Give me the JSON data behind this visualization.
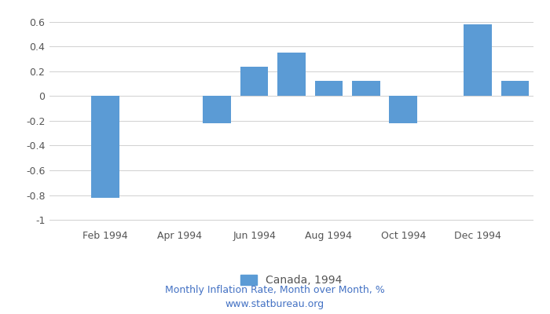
{
  "month_nums": [
    1,
    2,
    3,
    4,
    5,
    6,
    7,
    8,
    9,
    10,
    11,
    12,
    13
  ],
  "values": [
    0.0,
    -0.82,
    0.0,
    0.0,
    -0.22,
    0.24,
    0.35,
    0.12,
    0.12,
    -0.22,
    0.0,
    0.58,
    0.12
  ],
  "bar_color": "#5b9bd5",
  "legend_label": "Canada, 1994",
  "subtitle": "Monthly Inflation Rate, Month over Month, %",
  "source": "www.statbureau.org",
  "ylim": [
    -1.05,
    0.7
  ],
  "yticks": [
    -1.0,
    -0.8,
    -0.6,
    -0.4,
    -0.2,
    0.0,
    0.2,
    0.4,
    0.6
  ],
  "ytick_labels": [
    "-1",
    "-0.8",
    "-0.6",
    "-0.4",
    "-0.2",
    "0",
    "0.2",
    "0.4",
    "0.6"
  ],
  "xtick_positions": [
    2,
    4,
    6,
    8,
    10,
    12
  ],
  "xtick_labels": [
    "Feb 1994",
    "Apr 1994",
    "Jun 1994",
    "Aug 1994",
    "Oct 1994",
    "Dec 1994"
  ],
  "xlim": [
    0.5,
    13.5
  ],
  "subtitle_color": "#4472c4",
  "source_color": "#4472c4",
  "tick_label_color": "#555555",
  "subtitle_fontsize": 9,
  "source_fontsize": 9,
  "legend_fontsize": 10,
  "tick_fontsize": 9,
  "background_color": "#ffffff",
  "grid_color": "#d0d0d0",
  "bar_width": 0.75
}
